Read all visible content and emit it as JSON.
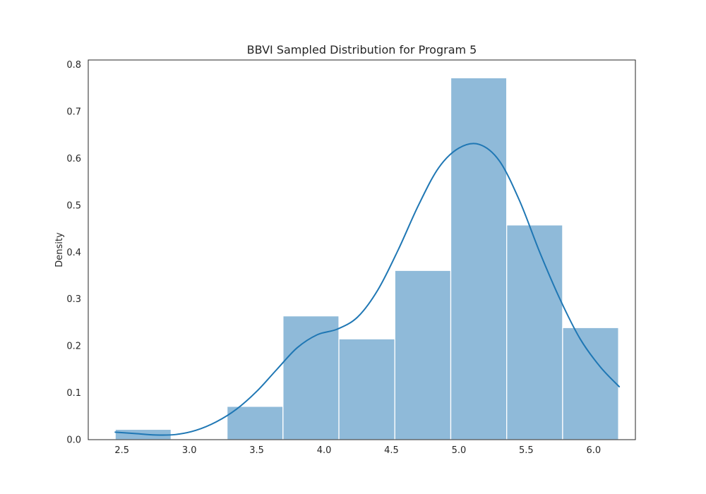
{
  "chart_data": {
    "type": "bar",
    "title": "BBVI Sampled Distribution for Program 5",
    "xlabel": "",
    "ylabel": "Density",
    "xlim": [
      2.25,
      6.31
    ],
    "ylim": [
      0,
      0.81
    ],
    "xticks": [
      2.5,
      3.0,
      3.5,
      4.0,
      4.5,
      5.0,
      5.5,
      6.0
    ],
    "xtick_labels": [
      "2.5",
      "3.0",
      "3.5",
      "4.0",
      "4.5",
      "5.0",
      "5.5",
      "6.0"
    ],
    "yticks": [
      0.0,
      0.1,
      0.2,
      0.3,
      0.4,
      0.5,
      0.6,
      0.7,
      0.8
    ],
    "ytick_labels": [
      "0.0",
      "0.1",
      "0.2",
      "0.3",
      "0.4",
      "0.5",
      "0.6",
      "0.7",
      "0.8"
    ],
    "grid": false,
    "bins": [
      {
        "x0": 2.45,
        "x1": 2.865,
        "density": 0.022
      },
      {
        "x0": 2.865,
        "x1": 3.28,
        "density": 0.0
      },
      {
        "x0": 3.28,
        "x1": 3.695,
        "density": 0.071
      },
      {
        "x0": 3.695,
        "x1": 4.11,
        "density": 0.264
      },
      {
        "x0": 4.11,
        "x1": 4.525,
        "density": 0.215
      },
      {
        "x0": 4.525,
        "x1": 4.94,
        "density": 0.361
      },
      {
        "x0": 4.94,
        "x1": 5.355,
        "density": 0.772
      },
      {
        "x0": 5.355,
        "x1": 5.77,
        "density": 0.458
      },
      {
        "x0": 5.77,
        "x1": 6.185,
        "density": 0.239
      }
    ],
    "kde": {
      "x": [
        2.45,
        2.6,
        2.75,
        2.9,
        3.05,
        3.2,
        3.35,
        3.5,
        3.65,
        3.8,
        3.95,
        4.1,
        4.25,
        4.4,
        4.55,
        4.7,
        4.85,
        5.0,
        5.15,
        5.3,
        5.45,
        5.6,
        5.75,
        5.9,
        6.05,
        6.19
      ],
      "y": [
        0.016,
        0.013,
        0.01,
        0.011,
        0.02,
        0.038,
        0.065,
        0.103,
        0.15,
        0.196,
        0.224,
        0.236,
        0.262,
        0.32,
        0.405,
        0.5,
        0.58,
        0.622,
        0.63,
        0.595,
        0.51,
        0.4,
        0.3,
        0.215,
        0.155,
        0.113
      ]
    },
    "colors": {
      "bar_fill": "#8fbad9",
      "bar_edge": "#ffffff",
      "kde_line": "#1f77b4",
      "axes": "#262626",
      "text": "#262626"
    }
  }
}
